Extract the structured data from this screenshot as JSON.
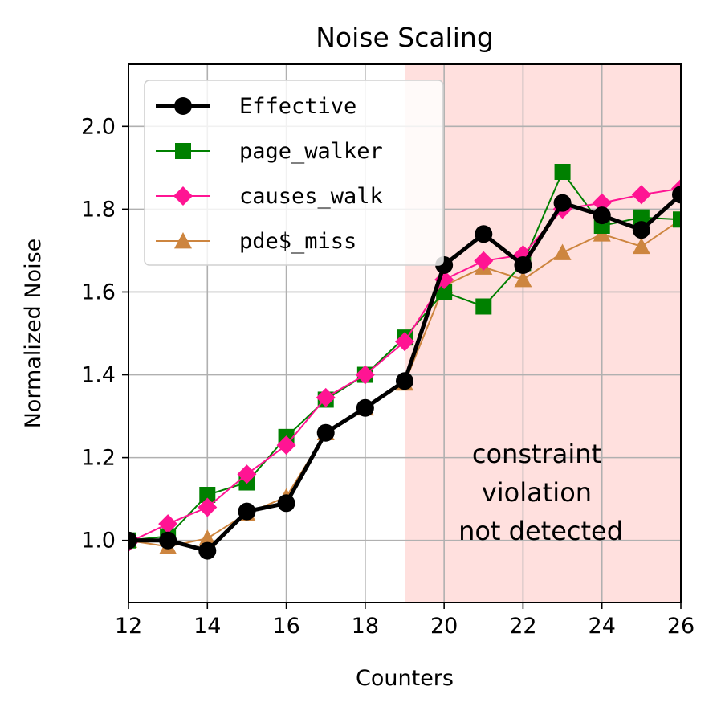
{
  "chart_data": {
    "type": "line",
    "title": "Noise Scaling",
    "xlabel": "Counters",
    "ylabel": "Normalized Noise",
    "xlim": [
      12,
      26
    ],
    "ylim": [
      0.85,
      2.15
    ],
    "xticks": [
      "12",
      "14",
      "16",
      "18",
      "20",
      "22",
      "24",
      "26"
    ],
    "yticks": [
      "1.0",
      "1.2",
      "1.4",
      "1.6",
      "1.8",
      "2.0"
    ],
    "grid": true,
    "legend_position": "top-left",
    "x": [
      12,
      13,
      14,
      15,
      16,
      17,
      18,
      19,
      20,
      21,
      22,
      23,
      24,
      25,
      26
    ],
    "series": [
      {
        "name": "Effective",
        "color": "#000000",
        "marker": "circle",
        "linewidth": "thick",
        "values": [
          1.0,
          1.0,
          0.975,
          1.07,
          1.09,
          1.26,
          1.32,
          1.385,
          1.665,
          1.74,
          1.665,
          1.815,
          1.785,
          1.75,
          1.835
        ]
      },
      {
        "name": "page_walker",
        "color": "#008000",
        "marker": "square",
        "linewidth": "thin",
        "values": [
          1.0,
          1.01,
          1.11,
          1.14,
          1.25,
          1.34,
          1.4,
          1.49,
          1.6,
          1.565,
          1.67,
          1.89,
          1.76,
          1.78,
          1.775
        ]
      },
      {
        "name": "causes_walk",
        "color": "#ff1493",
        "marker": "diamond",
        "linewidth": "thin",
        "values": [
          0.995,
          1.04,
          1.08,
          1.16,
          1.23,
          1.345,
          1.4,
          1.48,
          1.63,
          1.675,
          1.69,
          1.8,
          1.815,
          1.835,
          1.85
        ]
      },
      {
        "name": "pde$_miss",
        "color": "#cd853f",
        "marker": "triangle",
        "linewidth": "thin",
        "values": [
          1.0,
          0.985,
          1.005,
          1.065,
          1.105,
          1.26,
          1.32,
          1.38,
          1.615,
          1.66,
          1.63,
          1.695,
          1.74,
          1.71,
          1.775
        ]
      }
    ],
    "shaded_region": {
      "x_from": 19,
      "x_to": 26,
      "color": "#ffe0de"
    },
    "annotation": {
      "lines": [
        "constraint",
        "violation",
        "not detected"
      ]
    }
  }
}
